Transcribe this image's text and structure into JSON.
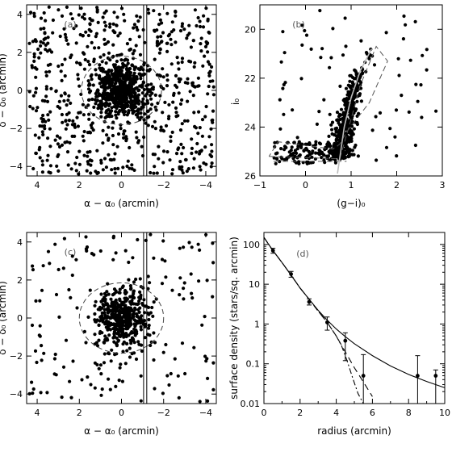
{
  "chart_data": [
    {
      "type": "scatter",
      "panel_label": "(a)",
      "xlabel": "α − α₀ (arcmin)",
      "ylabel": "δ − δ₀ (arcmin)",
      "xlim": [
        4.5,
        -4.5
      ],
      "ylim": [
        -4.5,
        4.5
      ],
      "xticks": [
        "4",
        "2",
        "0",
        "−2",
        "−4"
      ],
      "xtick_values": [
        4,
        2,
        0,
        -2,
        -4
      ],
      "yticks": [
        "−4",
        "−2",
        "0",
        "2",
        "4"
      ],
      "ytick_values": [
        -4,
        -2,
        0,
        2,
        4
      ],
      "field_stars": {
        "count": 650,
        "x_range": [
          -4.4,
          4.4
        ],
        "y_range": [
          -4.4,
          4.4
        ]
      },
      "cluster_stars": {
        "count": 550,
        "center": [
          0,
          0
        ],
        "sigma": [
          0.65,
          0.75
        ]
      },
      "ellipse": {
        "center": [
          0,
          0
        ],
        "semi_axes": [
          1.9,
          1.8
        ],
        "style": "dashed"
      },
      "vertical_lines_x": [
        -1.05,
        -1.2
      ]
    },
    {
      "type": "scatter",
      "panel_label": "(b)",
      "xlabel": "(g−i)₀",
      "ylabel": "i₀",
      "xlim": [
        -1,
        3
      ],
      "ylim": [
        26,
        19
      ],
      "xticks": [
        "−1",
        "0",
        "1",
        "2",
        "3"
      ],
      "xtick_values": [
        -1,
        0,
        1,
        2,
        3
      ],
      "yticks": [
        "20",
        "22",
        "24",
        "26"
      ],
      "ytick_values": [
        20,
        22,
        24,
        26
      ],
      "ridge_line": {
        "x": [
          0.7,
          0.85,
          1.0,
          1.2,
          1.45
        ],
        "y": [
          25.9,
          24.0,
          22.8,
          21.7,
          20.8
        ]
      },
      "selection_box": {
        "style": "dashed",
        "x": [
          -0.8,
          0.75,
          0.98,
          1.2,
          1.55,
          1.8,
          1.4,
          0.9,
          0.75,
          0.6,
          -0.6,
          -0.8
        ],
        "y": [
          25.2,
          25.3,
          23.8,
          22.3,
          20.7,
          21.3,
          23.0,
          24.2,
          24.7,
          24.9,
          24.6,
          25.2
        ]
      },
      "faint_box": {
        "style": "dashed",
        "x": [
          -0.7,
          0.9
        ],
        "y": [
          25.4,
          25.4
        ]
      },
      "stars_rgb": {
        "count": 430,
        "magnitude_range": [
          20.6,
          25.3
        ]
      },
      "stars_faint": {
        "count": 120,
        "color_range": [
          -0.7,
          0.7
        ],
        "magnitude_range": [
          24.6,
          25.5
        ]
      },
      "stars_field": {
        "count": 70,
        "color_range": [
          -0.6,
          2.9
        ],
        "magnitude_range": [
          19.2,
          25.4
        ]
      }
    },
    {
      "type": "scatter",
      "panel_label": "(c)",
      "xlabel": "α − α₀ (arcmin)",
      "ylabel": "δ − δ₀ (arcmin)",
      "xlim": [
        4.5,
        -4.5
      ],
      "ylim": [
        -4.5,
        4.5
      ],
      "xticks": [
        "4",
        "2",
        "0",
        "−2",
        "−4"
      ],
      "xtick_values": [
        4,
        2,
        0,
        -2,
        -4
      ],
      "yticks": [
        "−4",
        "−2",
        "0",
        "2",
        "4"
      ],
      "ytick_values": [
        -4,
        -2,
        0,
        2,
        4
      ],
      "field_stars": {
        "count": 170,
        "x_range": [
          -4.4,
          4.4
        ],
        "y_range": [
          -4.4,
          4.4
        ]
      },
      "cluster_stars": {
        "count": 450,
        "center": [
          0,
          0
        ],
        "sigma": [
          0.6,
          0.72
        ]
      },
      "ellipse": {
        "center": [
          0,
          0
        ],
        "semi_axes": [
          2.0,
          1.85
        ],
        "style": "dashed"
      },
      "vertical_lines_x": [
        -1.05,
        -1.2
      ]
    },
    {
      "type": "line",
      "panel_label": "(d)",
      "xlabel": "radius (arcmin)",
      "ylabel": "surface density (stars/sq. arcmin)",
      "xlim": [
        0,
        10
      ],
      "ylim": [
        0.01,
        200
      ],
      "yscale": "log",
      "xticks": [
        "0",
        "2",
        "4",
        "6",
        "8",
        "10"
      ],
      "xtick_values": [
        0,
        2,
        4,
        6,
        8,
        10
      ],
      "yticks": [
        "100",
        "10",
        "1",
        "0.1",
        "0.01"
      ],
      "ytick_values": [
        100,
        10,
        1,
        0.1,
        0.01
      ],
      "points": [
        {
          "x": 0.5,
          "y": 70,
          "err_lo": 60,
          "err_hi": 80
        },
        {
          "x": 1.5,
          "y": 18,
          "err_lo": 15,
          "err_hi": 21
        },
        {
          "x": 2.5,
          "y": 3.6,
          "err_lo": 3.0,
          "err_hi": 4.3
        },
        {
          "x": 3.5,
          "y": 1.1,
          "err_lo": 0.7,
          "err_hi": 1.5
        },
        {
          "x": 4.5,
          "y": 0.38,
          "err_lo": 0.12,
          "err_hi": 0.6
        },
        {
          "x": 5.5,
          "y": 0.05,
          "err_lo": 0.01,
          "err_hi": 0.17
        },
        {
          "x": 8.5,
          "y": 0.05,
          "err_lo": 0.01,
          "err_hi": 0.16
        },
        {
          "x": 9.5,
          "y": 0.05,
          "err_lo": 0.01,
          "err_hi": 0.07
        }
      ],
      "series": [
        {
          "style": "solid",
          "x": [
            0,
            0.5,
            1,
            1.5,
            2,
            2.5,
            3,
            3.5,
            4,
            4.5,
            5,
            6,
            7,
            8,
            9,
            10
          ],
          "y": [
            150,
            70,
            35,
            17,
            8,
            4.2,
            2.2,
            1.25,
            0.75,
            0.48,
            0.32,
            0.16,
            0.088,
            0.054,
            0.036,
            0.025
          ]
        },
        {
          "style": "dashed",
          "x": [
            0,
            0.5,
            1,
            1.5,
            2,
            2.5,
            3,
            3.5,
            4,
            4.5,
            5,
            5.5,
            6
          ],
          "y": [
            150,
            70,
            35,
            17,
            8,
            4.2,
            2.1,
            1.1,
            0.5,
            0.2,
            0.08,
            0.035,
            0.015
          ]
        },
        {
          "style": "dash-dot",
          "x": [
            0,
            0.5,
            1,
            1.5,
            2,
            2.5,
            3,
            3.5,
            4,
            4.3,
            4.6,
            4.9,
            5.2,
            5.5
          ],
          "y": [
            150,
            70,
            35,
            17,
            8,
            4.2,
            2.1,
            1.1,
            0.5,
            0.28,
            0.12,
            0.045,
            0.018,
            0.01
          ]
        }
      ]
    }
  ]
}
